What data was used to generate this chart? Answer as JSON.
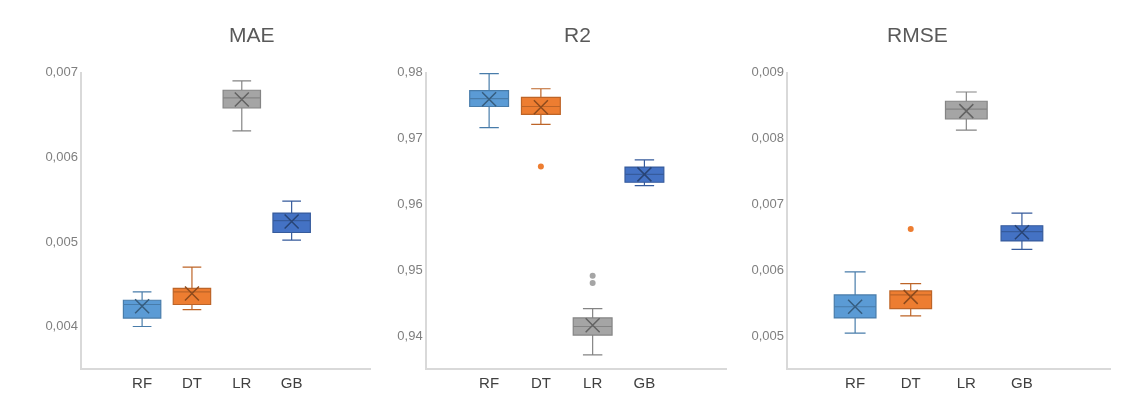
{
  "chart_data": [
    {
      "type": "box",
      "title": "MAE",
      "categories": [
        "RF",
        "DT",
        "LR",
        "GB"
      ],
      "colors": [
        "#5b9bd5",
        "#ed7d31",
        "#a5a5a5",
        "#4472c4"
      ],
      "ylim": [
        0.0035,
        0.007
      ],
      "yticks": [
        {
          "value": 0.004,
          "label": "0,004"
        },
        {
          "value": 0.005,
          "label": "0,005"
        },
        {
          "value": 0.006,
          "label": "0,006"
        },
        {
          "value": 0.007,
          "label": "0,007"
        }
      ],
      "grid": false,
      "boxes": [
        {
          "low": 0.00399,
          "q1": 0.00409,
          "median": 0.00425,
          "q3": 0.0043,
          "high": 0.0044,
          "mean": 0.00423
        },
        {
          "low": 0.00419,
          "q1": 0.00425,
          "median": 0.0044,
          "q3": 0.00444,
          "high": 0.00469,
          "mean": 0.00438
        },
        {
          "low": 0.0063,
          "q1": 0.00657,
          "median": 0.00669,
          "q3": 0.00678,
          "high": 0.00689,
          "mean": 0.00667
        },
        {
          "low": 0.00501,
          "q1": 0.0051,
          "median": 0.00524,
          "q3": 0.00533,
          "high": 0.00547,
          "mean": 0.00523
        }
      ]
    },
    {
      "type": "box",
      "title": "R2",
      "categories": [
        "RF",
        "DT",
        "LR",
        "GB"
      ],
      "colors": [
        "#5b9bd5",
        "#ed7d31",
        "#a5a5a5",
        "#4472c4"
      ],
      "ylim": [
        0.935,
        0.98
      ],
      "yticks": [
        {
          "value": 0.94,
          "label": "0,94"
        },
        {
          "value": 0.95,
          "label": "0,95"
        },
        {
          "value": 0.96,
          "label": "0,96"
        },
        {
          "value": 0.97,
          "label": "0,97"
        },
        {
          "value": 0.98,
          "label": "0,98"
        }
      ],
      "grid": false,
      "boxes": [
        {
          "low": 0.9715,
          "q1": 0.9747,
          "median": 0.9759,
          "q3": 0.9771,
          "high": 0.9797,
          "mean": 0.9758
        },
        {
          "low": 0.972,
          "q1": 0.9735,
          "median": 0.9747,
          "q3": 0.9761,
          "high": 0.9774,
          "mean": 0.9746,
          "outliers": [
            0.9656
          ]
        },
        {
          "low": 0.937,
          "q1": 0.94,
          "median": 0.9413,
          "q3": 0.9426,
          "high": 0.944,
          "mean": 0.9415,
          "outliers": [
            0.949,
            0.9479
          ]
        },
        {
          "low": 0.9627,
          "q1": 0.9632,
          "median": 0.9644,
          "q3": 0.9655,
          "high": 0.9666,
          "mean": 0.9644
        }
      ]
    },
    {
      "type": "box",
      "title": "RMSE",
      "categories": [
        "RF",
        "DT",
        "LR",
        "GB"
      ],
      "colors": [
        "#5b9bd5",
        "#ed7d31",
        "#a5a5a5",
        "#4472c4"
      ],
      "ylim": [
        0.0045,
        0.009
      ],
      "yticks": [
        {
          "value": 0.005,
          "label": "0,005"
        },
        {
          "value": 0.006,
          "label": "0,006"
        },
        {
          "value": 0.007,
          "label": "0,007"
        },
        {
          "value": 0.008,
          "label": "0,008"
        },
        {
          "value": 0.009,
          "label": "0,009"
        }
      ],
      "grid": false,
      "boxes": [
        {
          "low": 0.00503,
          "q1": 0.00526,
          "median": 0.00543,
          "q3": 0.00561,
          "high": 0.00596,
          "mean": 0.00543
        },
        {
          "low": 0.00529,
          "q1": 0.0054,
          "median": 0.00561,
          "q3": 0.00567,
          "high": 0.00578,
          "mean": 0.00558,
          "outliers": [
            0.00661
          ]
        },
        {
          "low": 0.00811,
          "q1": 0.00828,
          "median": 0.00843,
          "q3": 0.00855,
          "high": 0.00869,
          "mean": 0.0084
        },
        {
          "low": 0.0063,
          "q1": 0.00643,
          "median": 0.00657,
          "q3": 0.00666,
          "high": 0.00685,
          "mean": 0.00656
        }
      ]
    }
  ]
}
